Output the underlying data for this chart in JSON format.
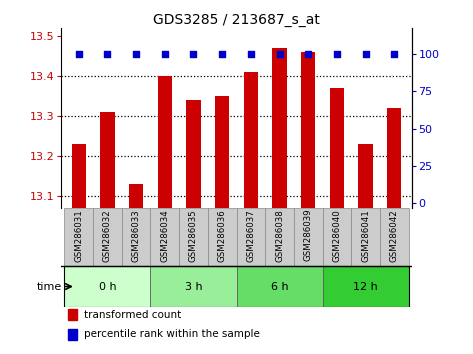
{
  "title": "GDS3285 / 213687_s_at",
  "samples": [
    "GSM286031",
    "GSM286032",
    "GSM286033",
    "GSM286034",
    "GSM286035",
    "GSM286036",
    "GSM286037",
    "GSM286038",
    "GSM286039",
    "GSM286040",
    "GSM286041",
    "GSM286042"
  ],
  "bar_values": [
    13.23,
    13.31,
    13.13,
    13.4,
    13.34,
    13.35,
    13.41,
    13.47,
    13.46,
    13.37,
    13.23,
    13.32
  ],
  "bar_color": "#cc0000",
  "percentile_color": "#0000cc",
  "ylim_left": [
    13.07,
    13.52
  ],
  "ylim_right": [
    -3,
    117
  ],
  "yticks_left": [
    13.1,
    13.2,
    13.3,
    13.4,
    13.5
  ],
  "yticks_right": [
    0,
    25,
    50,
    75,
    100
  ],
  "groups": [
    {
      "label": "0 h",
      "start": 0,
      "end": 3
    },
    {
      "label": "3 h",
      "start": 3,
      "end": 6
    },
    {
      "label": "6 h",
      "start": 6,
      "end": 9
    },
    {
      "label": "12 h",
      "start": 9,
      "end": 12
    }
  ],
  "group_colors": [
    "#ccffcc",
    "#99ee99",
    "#66dd66",
    "#33cc33"
  ],
  "time_label": "time",
  "legend_bar": "transformed count",
  "legend_pct": "percentile rank within the sample",
  "sample_box_color": "#cccccc",
  "sample_box_edge": "#888888"
}
